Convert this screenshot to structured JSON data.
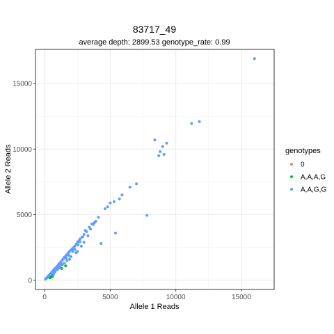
{
  "chart_data": {
    "type": "scatter",
    "title": "83717_49",
    "subtitle": "average depth:  2899.53  genotype_rate:  0.99",
    "xlabel": "Allele 1 Reads",
    "ylabel": "Allele 2 Reads",
    "xlim": [
      -700,
      17500
    ],
    "ylim": [
      -700,
      17600
    ],
    "xticks": [
      0,
      5000,
      10000,
      15000
    ],
    "yticks": [
      0,
      5000,
      10000,
      15000
    ],
    "xtick_labels": [
      "0",
      "5000",
      "10000",
      "15000"
    ],
    "ytick_labels": [
      "0",
      "5000",
      "10000",
      "15000"
    ],
    "grid": true,
    "legend": {
      "title": "genotypes",
      "placement": "right",
      "entries": [
        {
          "label": "0",
          "color": "#F8766D"
        },
        {
          "label": "A,A,A,G",
          "color": "#00BA38"
        },
        {
          "label": "A,A,G,G",
          "color": "#619CFF"
        }
      ]
    },
    "series": [
      {
        "name": "A,A,A,G",
        "color": "#00BA38",
        "points": [
          [
            400,
            180
          ],
          [
            520,
            260
          ],
          [
            600,
            300
          ],
          [
            1300,
            900
          ],
          [
            1600,
            1100
          ]
        ]
      },
      {
        "name": "A,A,G,G",
        "color": "#619CFF",
        "points": [
          [
            16000,
            16900
          ],
          [
            11800,
            12100
          ],
          [
            11200,
            11950
          ],
          [
            9300,
            10450
          ],
          [
            8400,
            10700
          ],
          [
            9000,
            10200
          ],
          [
            8800,
            9800
          ],
          [
            9100,
            9600
          ],
          [
            8700,
            9500
          ],
          [
            7800,
            4950
          ],
          [
            7000,
            7350
          ],
          [
            6500,
            7100
          ],
          [
            5900,
            6500
          ],
          [
            5700,
            6200
          ],
          [
            5000,
            5900
          ],
          [
            5300,
            6000
          ],
          [
            4800,
            5600
          ],
          [
            4600,
            5450
          ],
          [
            5400,
            3600
          ],
          [
            4300,
            2800
          ],
          [
            3900,
            4500
          ],
          [
            3700,
            4250
          ],
          [
            3400,
            4050
          ],
          [
            3100,
            3800
          ],
          [
            3000,
            3500
          ],
          [
            3300,
            3400
          ],
          [
            2850,
            3300
          ],
          [
            2700,
            3150
          ],
          [
            2600,
            3000
          ],
          [
            2500,
            2900
          ],
          [
            2400,
            2750
          ],
          [
            2300,
            2600
          ],
          [
            2200,
            2500
          ],
          [
            2100,
            2400
          ],
          [
            2000,
            2300
          ],
          [
            1900,
            2200
          ],
          [
            1800,
            2100
          ],
          [
            1700,
            1950
          ],
          [
            1600,
            1850
          ],
          [
            1500,
            1750
          ],
          [
            1450,
            1650
          ],
          [
            1400,
            1600
          ],
          [
            1300,
            1500
          ],
          [
            1250,
            1400
          ],
          [
            1200,
            1350
          ],
          [
            1150,
            1300
          ],
          [
            1100,
            1250
          ],
          [
            1050,
            1180
          ],
          [
            1000,
            1100
          ],
          [
            950,
            1050
          ],
          [
            900,
            1000
          ],
          [
            850,
            950
          ],
          [
            800,
            900
          ],
          [
            750,
            850
          ],
          [
            700,
            800
          ],
          [
            650,
            740
          ],
          [
            600,
            680
          ],
          [
            550,
            620
          ],
          [
            500,
            560
          ],
          [
            450,
            500
          ],
          [
            400,
            450
          ],
          [
            350,
            400
          ],
          [
            300,
            340
          ],
          [
            250,
            280
          ],
          [
            200,
            220
          ],
          [
            150,
            170
          ],
          [
            100,
            120
          ],
          [
            60,
            80
          ],
          [
            3600,
            4300
          ],
          [
            3200,
            3700
          ],
          [
            2900,
            3300
          ],
          [
            2550,
            2700
          ],
          [
            2150,
            2200
          ],
          [
            1850,
            1900
          ],
          [
            2800,
            2600
          ],
          [
            2400,
            2100
          ],
          [
            2000,
            1800
          ],
          [
            1700,
            1500
          ],
          [
            1500,
            1300
          ],
          [
            1350,
            1200
          ],
          [
            1150,
            1000
          ],
          [
            950,
            800
          ],
          [
            800,
            650
          ],
          [
            700,
            500
          ],
          [
            600,
            400
          ],
          [
            500,
            300
          ],
          [
            3500,
            3900
          ],
          [
            3800,
            4400
          ],
          [
            4100,
            4800
          ],
          [
            2500,
            2200
          ],
          [
            3000,
            2900
          ],
          [
            1900,
            1600
          ],
          [
            2700,
            2950
          ],
          [
            2300,
            2350
          ],
          [
            1650,
            1700
          ],
          [
            1250,
            1150
          ],
          [
            1050,
            900
          ],
          [
            900,
            850
          ]
        ]
      }
    ]
  }
}
